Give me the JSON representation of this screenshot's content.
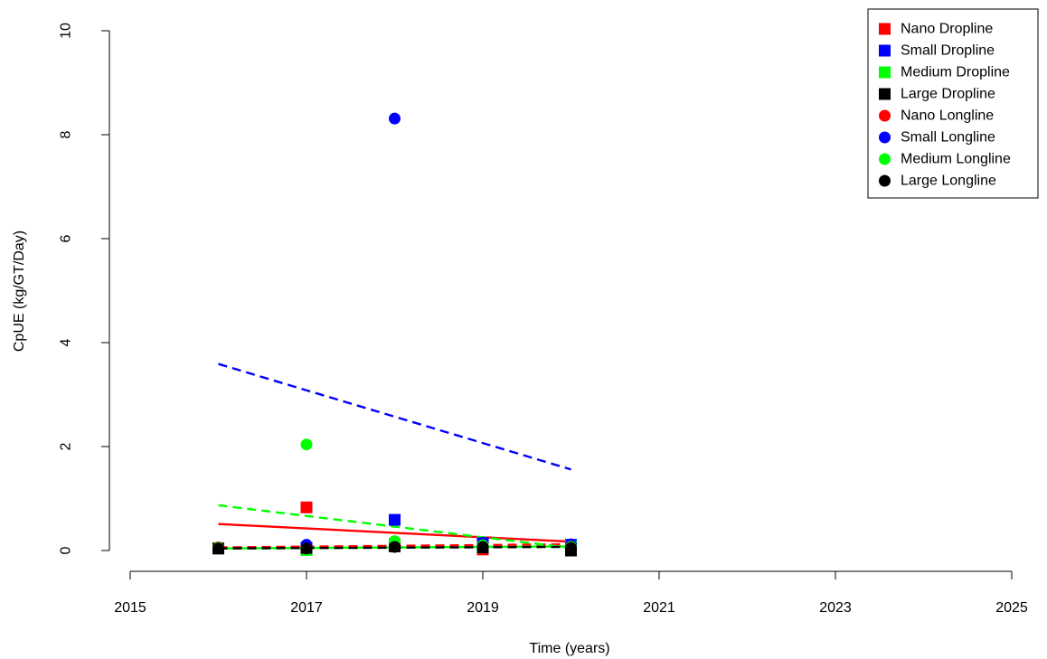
{
  "chart_data": {
    "type": "scatter",
    "xlabel": "Time (years)",
    "ylabel": "CpUE (kg/GT/Day)",
    "xlim": [
      2015,
      2025
    ],
    "ylim": [
      0,
      10
    ],
    "xticks": [
      2015,
      2017,
      2019,
      2021,
      2023,
      2025
    ],
    "yticks": [
      0,
      2,
      4,
      6,
      8,
      10
    ],
    "grid": false,
    "legend_position": "top-right",
    "series": [
      {
        "name": "Nano Dropline",
        "color": "#ff0000",
        "marker": "square",
        "x": [
          2016,
          2017,
          2018,
          2019,
          2020
        ],
        "y": [
          0.04,
          0.83,
          0.12,
          0.02,
          0.1
        ],
        "trend": {
          "style": "solid",
          "x": [
            2016,
            2020
          ],
          "y": [
            0.51,
            0.17
          ]
        }
      },
      {
        "name": "Small Dropline",
        "color": "#0000ff",
        "marker": "square",
        "x": [
          2016,
          2017,
          2018,
          2019,
          2020
        ],
        "y": [
          0.04,
          0.05,
          0.59,
          0.14,
          0.11
        ]
      },
      {
        "name": "Medium Dropline",
        "color": "#00ff00",
        "marker": "square",
        "x": [
          2016,
          2017,
          2018,
          2019,
          2020
        ],
        "y": [
          0.04,
          0.01,
          0.1,
          0.06,
          0.08
        ],
        "trend": {
          "style": "solid",
          "x": [
            2016,
            2020
          ],
          "y": [
            0.04,
            0.08
          ]
        }
      },
      {
        "name": "Large Dropline",
        "color": "#000000",
        "marker": "square",
        "x": [
          2016,
          2017,
          2018,
          2019,
          2020
        ],
        "y": [
          0.04,
          0.05,
          0.08,
          0.06,
          0.0
        ]
      },
      {
        "name": "Nano Longline",
        "color": "#ff0000",
        "marker": "circle",
        "x": [
          2016,
          2017,
          2018,
          2019,
          2020
        ],
        "y": [
          0.06,
          0.08,
          0.1,
          0.12,
          0.1
        ],
        "trend": {
          "style": "dashed",
          "x": [
            2016,
            2020
          ],
          "y": [
            0.06,
            0.12
          ]
        }
      },
      {
        "name": "Small Longline",
        "color": "#0000ff",
        "marker": "circle",
        "x": [
          2016,
          2017,
          2018,
          2019,
          2020
        ],
        "y": [
          0.04,
          0.11,
          8.31,
          0.15,
          0.12
        ],
        "trend": {
          "style": "dashed",
          "x": [
            2016,
            2020
          ],
          "y": [
            3.59,
            1.56
          ]
        }
      },
      {
        "name": "Medium Longline",
        "color": "#00ff00",
        "marker": "circle",
        "x": [
          2016,
          2017,
          2018,
          2019,
          2020
        ],
        "y": [
          0.05,
          2.04,
          0.18,
          0.1,
          0.07
        ],
        "trend": {
          "style": "dashed",
          "x": [
            2016,
            2020
          ],
          "y": [
            0.87,
            0.05
          ]
        }
      },
      {
        "name": "Large Longline",
        "color": "#000000",
        "marker": "circle",
        "x": [
          2016,
          2017,
          2018,
          2019,
          2020
        ],
        "y": [
          0.04,
          0.04,
          0.07,
          0.07,
          0.05
        ],
        "trend": {
          "style": "dashed",
          "x": [
            2016,
            2020
          ],
          "y": [
            0.04,
            0.07
          ]
        }
      }
    ]
  }
}
